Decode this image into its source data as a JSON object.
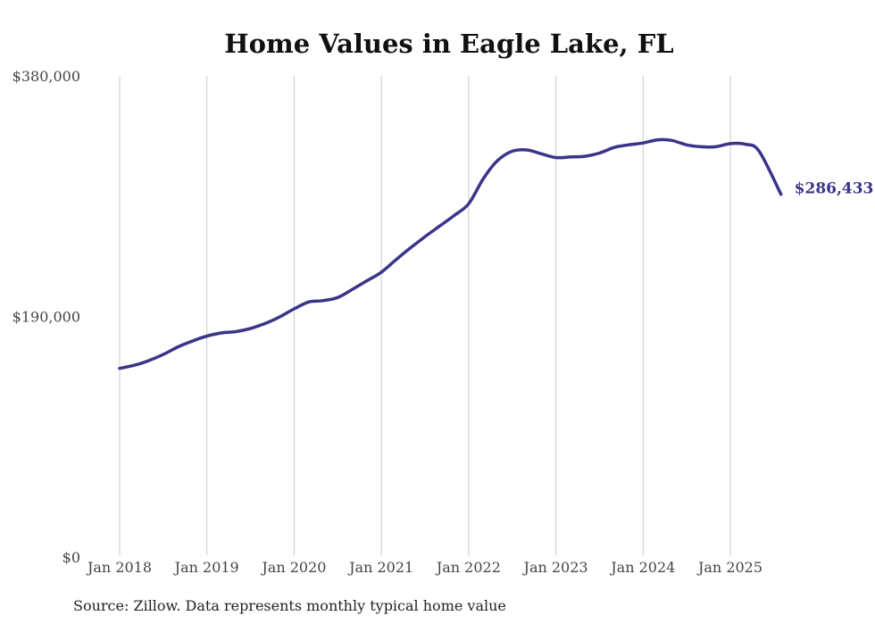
{
  "chart_data": {
    "type": "line",
    "title": "Home Values in Eagle Lake, FL",
    "xlabel": "",
    "ylabel": "",
    "ylim": [
      0,
      380000
    ],
    "yticks": [
      {
        "value": 0,
        "label": "$0"
      },
      {
        "value": 190000,
        "label": "$190,000"
      },
      {
        "value": 380000,
        "label": "$380,000"
      }
    ],
    "xticks": [
      {
        "value": 2018.0,
        "label": "Jan 2018"
      },
      {
        "value": 2019.0,
        "label": "Jan 2019"
      },
      {
        "value": 2020.0,
        "label": "Jan 2020"
      },
      {
        "value": 2021.0,
        "label": "Jan 2021"
      },
      {
        "value": 2022.0,
        "label": "Jan 2022"
      },
      {
        "value": 2023.0,
        "label": "Jan 2023"
      },
      {
        "value": 2024.0,
        "label": "Jan 2024"
      },
      {
        "value": 2025.0,
        "label": "Jan 2025"
      }
    ],
    "xlim": [
      2018.0,
      2025.58
    ],
    "grid": "vertical",
    "series": [
      {
        "name": "Typical home value",
        "color": "#3b3489",
        "end_label": "$286,433",
        "x": [
          2018.0,
          2018.17,
          2018.33,
          2018.5,
          2018.67,
          2018.83,
          2019.0,
          2019.17,
          2019.33,
          2019.5,
          2019.67,
          2019.83,
          2020.0,
          2020.17,
          2020.33,
          2020.5,
          2020.67,
          2020.83,
          2021.0,
          2021.17,
          2021.33,
          2021.5,
          2021.67,
          2021.83,
          2022.0,
          2022.17,
          2022.33,
          2022.5,
          2022.67,
          2022.83,
          2023.0,
          2023.17,
          2023.33,
          2023.5,
          2023.67,
          2023.83,
          2024.0,
          2024.17,
          2024.33,
          2024.5,
          2024.67,
          2024.83,
          2025.0,
          2025.17,
          2025.33,
          2025.58
        ],
        "values": [
          149000,
          151500,
          155000,
          160000,
          166000,
          170500,
          174500,
          177000,
          178000,
          180500,
          184500,
          189500,
          196000,
          201500,
          202500,
          205000,
          211500,
          218000,
          225000,
          235000,
          244000,
          253000,
          261500,
          269500,
          279000,
          299000,
          313000,
          320500,
          321500,
          318500,
          315500,
          316000,
          316500,
          319000,
          323500,
          325500,
          327000,
          329500,
          329000,
          325500,
          324000,
          324000,
          326500,
          326000,
          320500,
          286433
        ]
      }
    ]
  },
  "source_note": "Source: Zillow. Data represents monthly typical home value"
}
